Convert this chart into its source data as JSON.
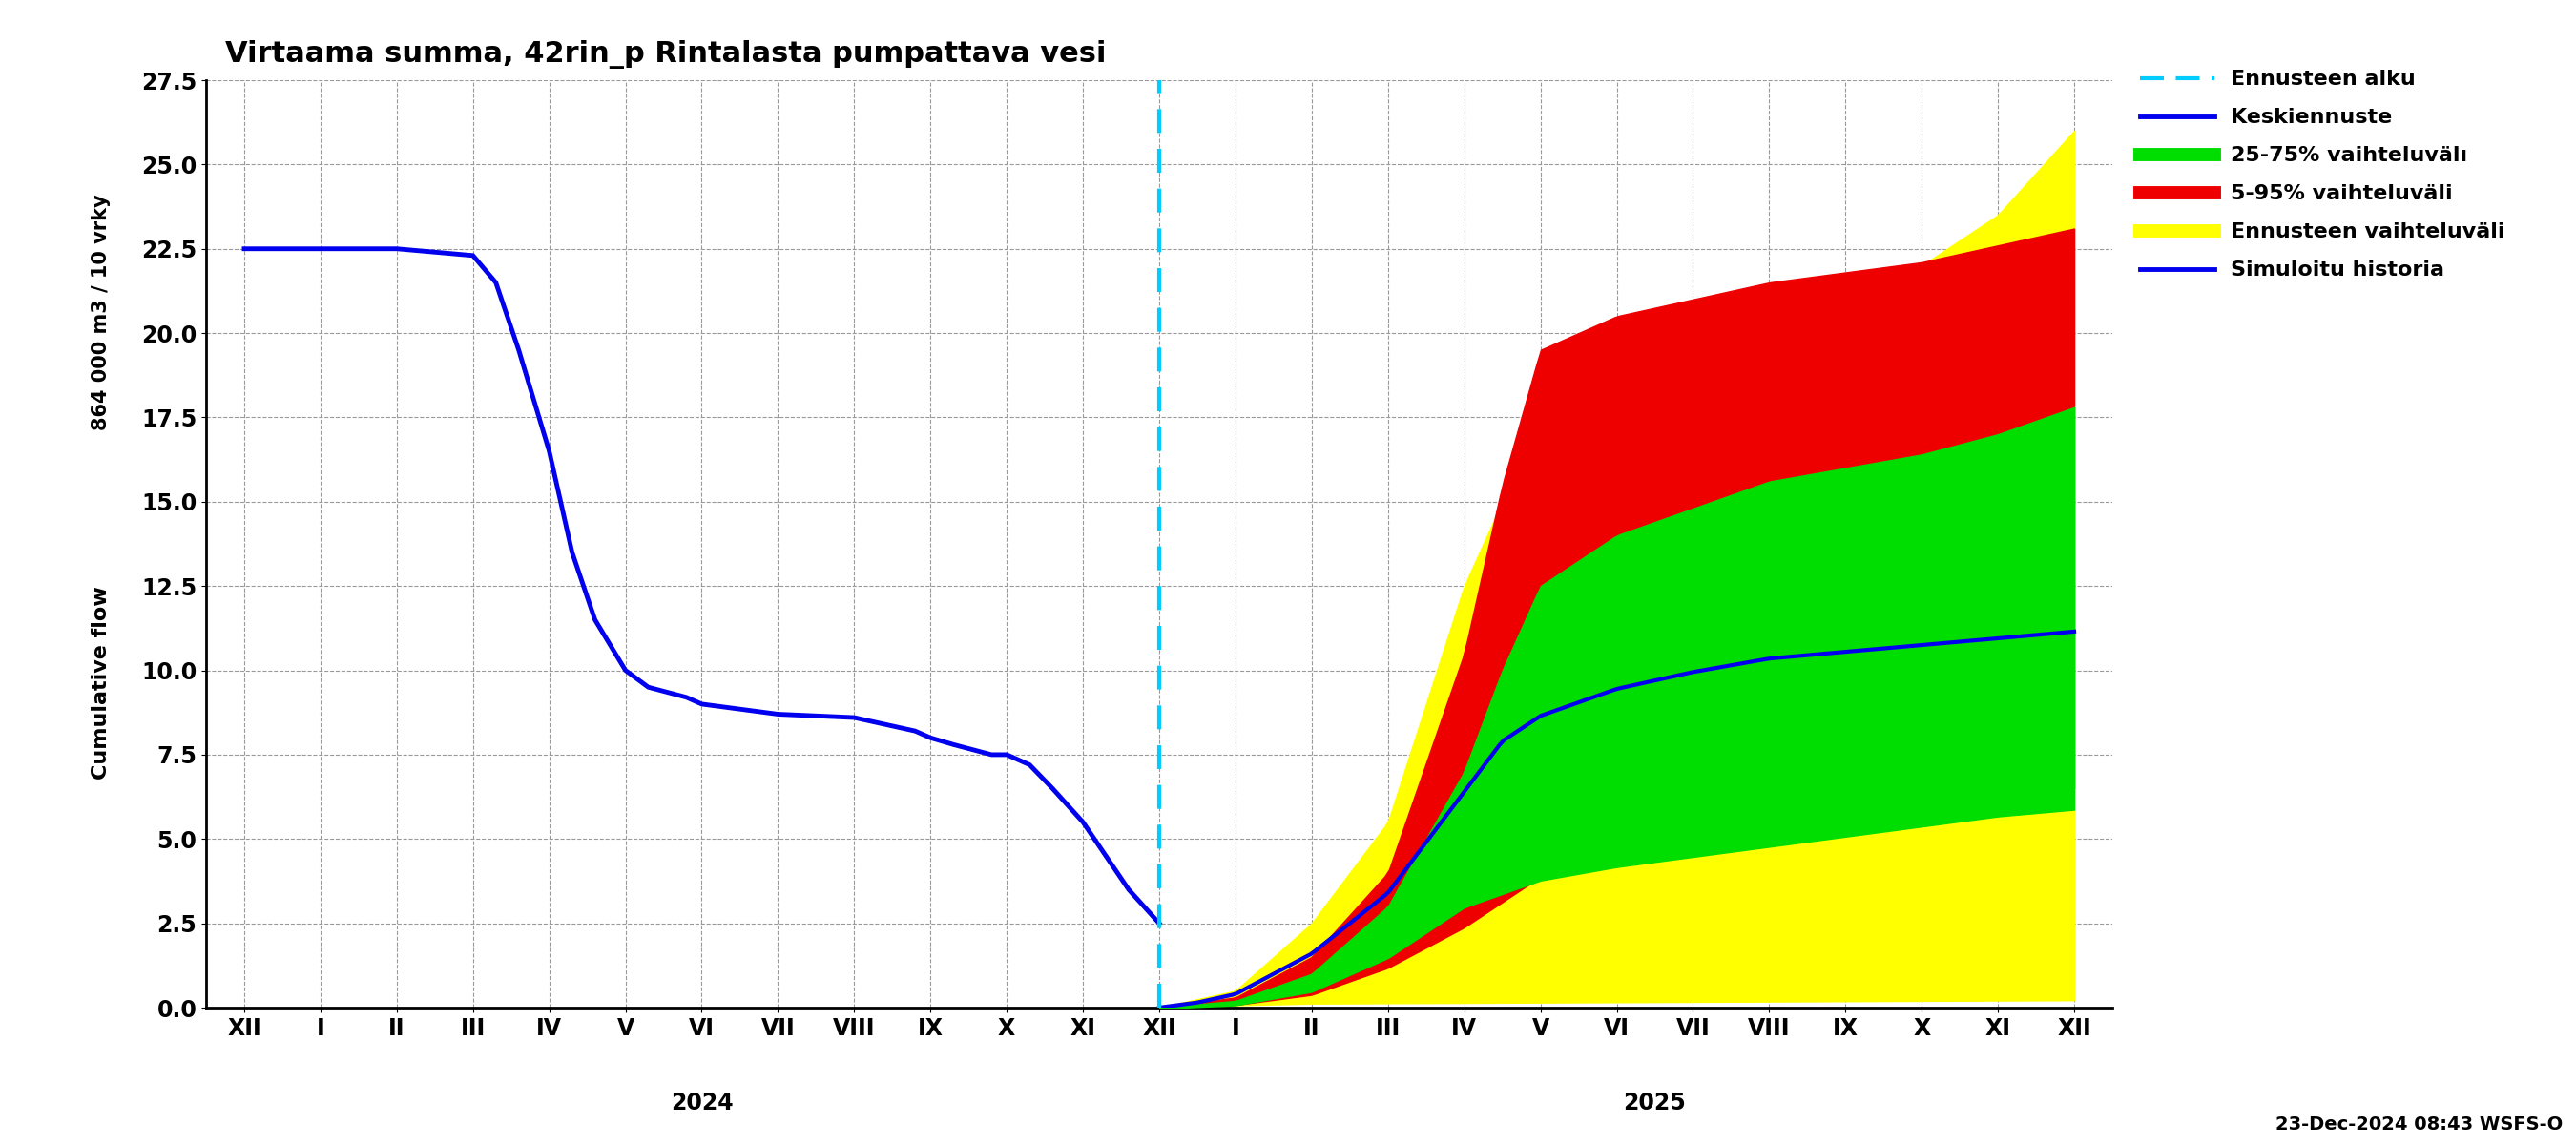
{
  "title": "Virtaama summa, 42rin_p Rintalasta pumpattava vesi",
  "ylabel_top": "864 000 m3 / 10 vrky",
  "ylabel_bottom": "Cumulative flow",
  "ylim": [
    0.0,
    27.5
  ],
  "yticks": [
    0.0,
    2.5,
    5.0,
    7.5,
    10.0,
    12.5,
    15.0,
    17.5,
    20.0,
    22.5,
    25.0,
    27.5
  ],
  "footnote": "23-Dec-2024 08:43 WSFS-O",
  "bg_color": "#ffffff",
  "grid_color": "#aaaaaa",
  "hist_color": "#0000ee",
  "yellow_color": "#ffff00",
  "red_color": "#ee0000",
  "green_color": "#00dd00",
  "median_color": "#0000ee",
  "cyan_color": "#00ccff"
}
